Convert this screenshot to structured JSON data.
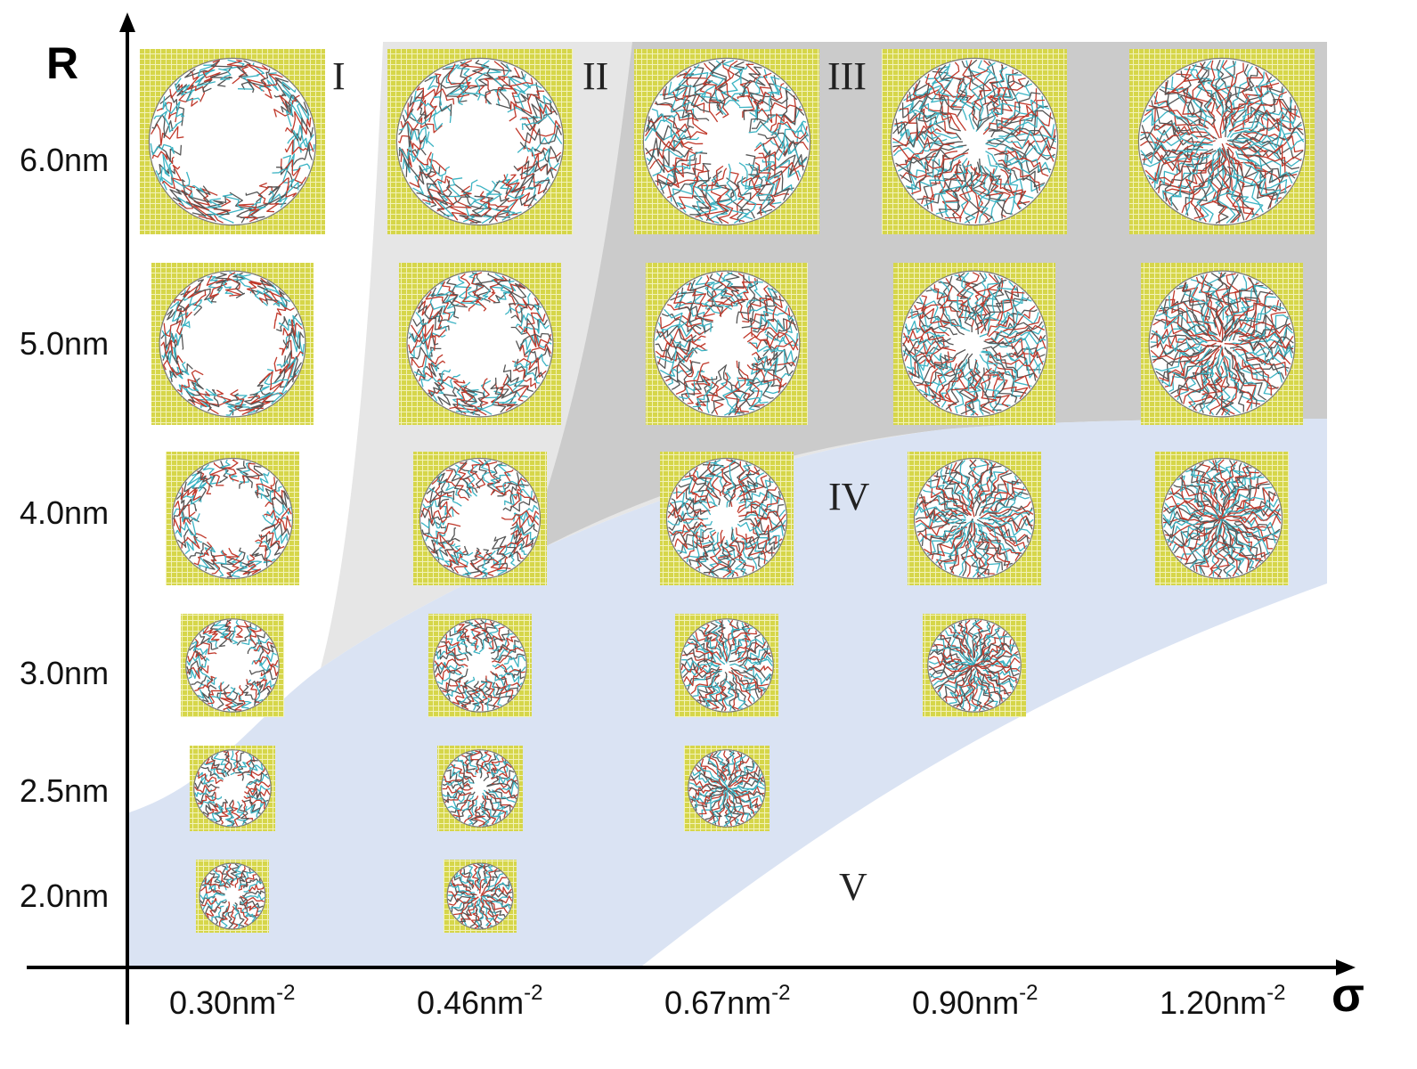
{
  "axes": {
    "y_title": "R",
    "x_title": "σ",
    "y_ticks": [
      "6.0nm",
      "5.0nm",
      "4.0nm",
      "3.0nm",
      "2.5nm",
      "2.0nm"
    ],
    "x_ticks": [
      {
        "base": "0.30nm",
        "sup": "-2"
      },
      {
        "base": "0.46nm",
        "sup": "-2"
      },
      {
        "base": "0.67nm",
        "sup": "-2"
      },
      {
        "base": "0.90nm",
        "sup": "-2"
      },
      {
        "base": "1.20nm",
        "sup": "-2"
      }
    ]
  },
  "regions": [
    {
      "label": "I",
      "color": "#ffffff"
    },
    {
      "label": "II",
      "color": "#e6e6e6"
    },
    {
      "label": "III",
      "color": "#cbcbcb"
    },
    {
      "label": "IV",
      "color": "#dae3f3"
    },
    {
      "label": "V",
      "color": "#ffffff"
    }
  ],
  "colors": {
    "pore_wall": "#d6d64a",
    "pore_wall_grid": "#f2f2b8",
    "chain_blue": "#3bb3c3",
    "chain_red": "#c0392b",
    "chain_gray": "#555555"
  },
  "snapshots": {
    "note_grafting_fill": [
      0.35,
      0.5,
      0.68,
      0.82,
      0.92
    ],
    "rows": [
      {
        "radius": "6.0nm",
        "columns": [
          0,
          1,
          2,
          3,
          4
        ]
      },
      {
        "radius": "5.0nm",
        "columns": [
          0,
          1,
          2,
          3,
          4
        ]
      },
      {
        "radius": "4.0nm",
        "columns": [
          0,
          1,
          2,
          3,
          4
        ]
      },
      {
        "radius": "3.0nm",
        "columns": [
          0,
          1,
          2,
          3
        ]
      },
      {
        "radius": "2.5nm",
        "columns": [
          0,
          1,
          2
        ]
      },
      {
        "radius": "2.0nm",
        "columns": [
          0,
          1
        ]
      }
    ]
  }
}
